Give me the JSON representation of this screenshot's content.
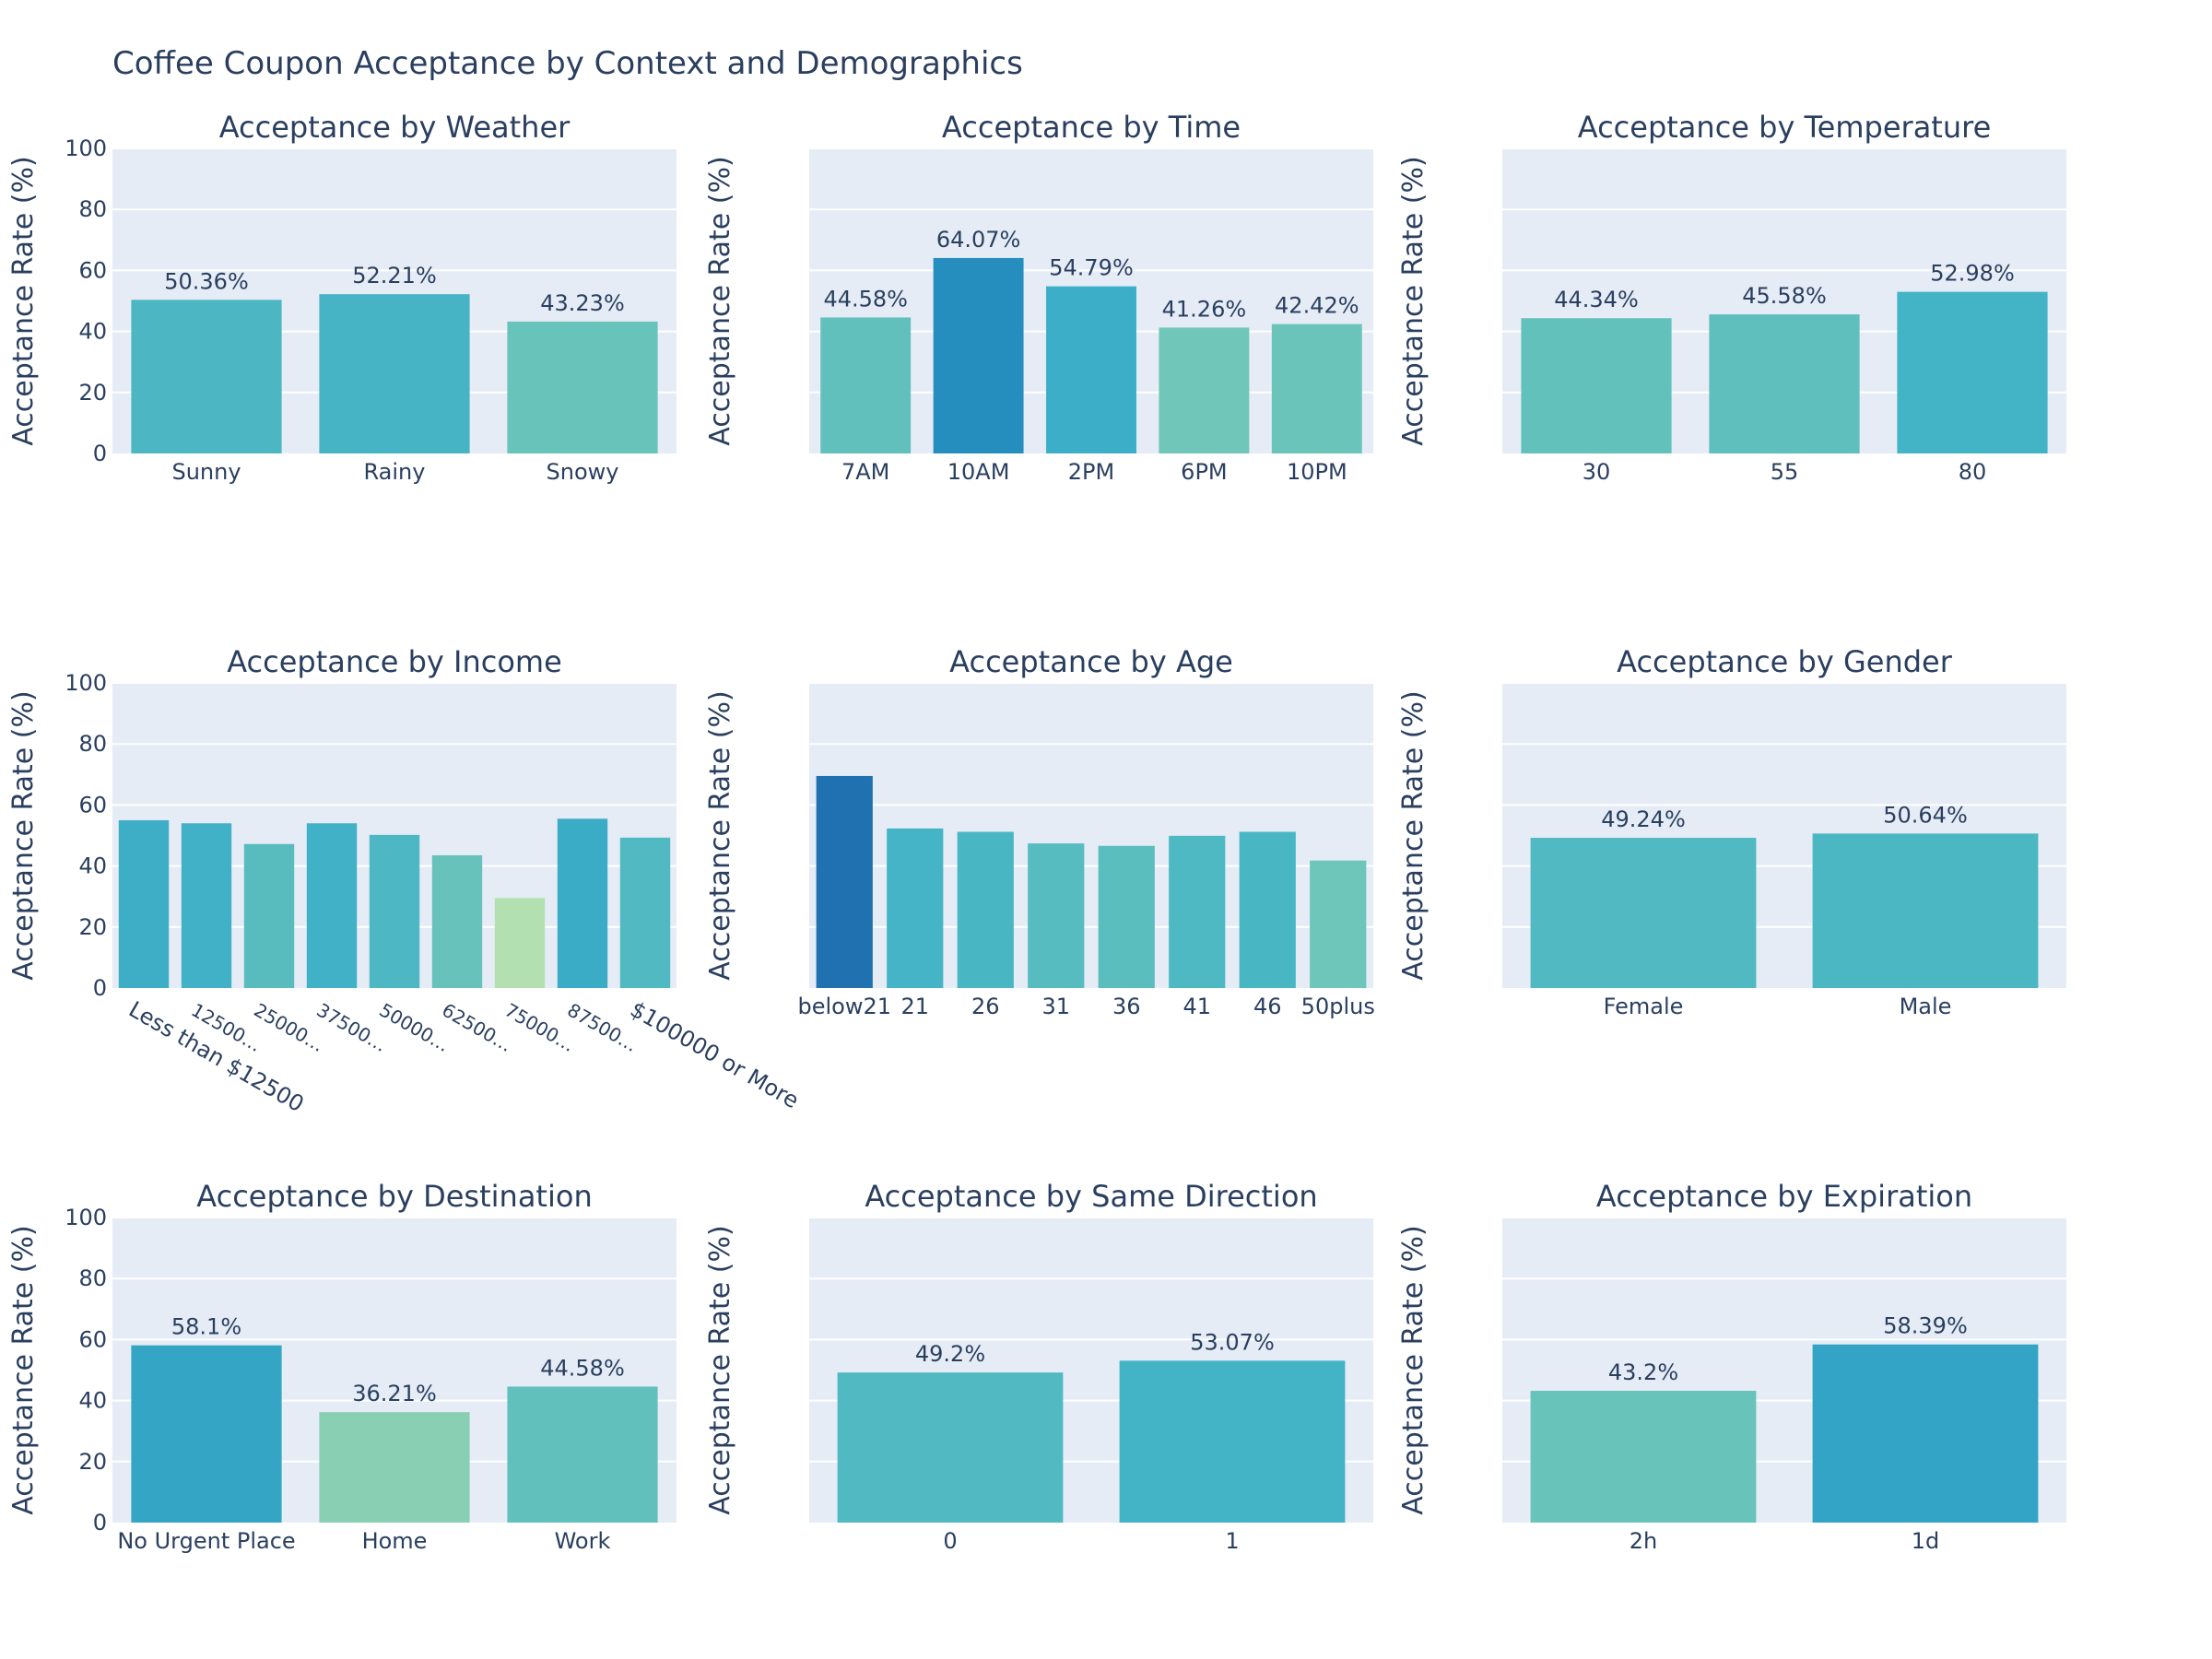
{
  "title": "Coffee Coupon Acceptance by Context and Demographics",
  "colors": {
    "plot_bg": "#e5ecf6",
    "grid": "#ffffff",
    "text": "#2a3f5f",
    "colorscale": [
      "#b3e0b0",
      "#80ccb5",
      "#5ebfbd",
      "#41b2c7",
      "#2a9bc4",
      "#1f71b0"
    ]
  },
  "y_axis_label": "Acceptance Rate (%)",
  "y_ticks": [
    "0",
    "20",
    "40",
    "60",
    "80",
    "100"
  ],
  "chart_data": [
    {
      "type": "bar",
      "title": "Acceptance by Weather",
      "ylabel": "Acceptance Rate (%)",
      "ylim": [
        0,
        100
      ],
      "show_yticks": true,
      "show_labels": true,
      "categories": [
        "Sunny",
        "Rainy",
        "Snowy"
      ],
      "values": [
        50.36,
        52.21,
        43.23
      ],
      "text": [
        "50.36%",
        "52.21%",
        "43.23%"
      ]
    },
    {
      "type": "bar",
      "title": "Acceptance by Time",
      "ylabel": "Acceptance Rate (%)",
      "ylim": [
        0,
        100
      ],
      "show_yticks": false,
      "show_labels": true,
      "categories": [
        "7AM",
        "10AM",
        "2PM",
        "6PM",
        "10PM"
      ],
      "values": [
        44.58,
        64.07,
        54.79,
        41.26,
        42.42
      ],
      "text": [
        "44.58%",
        "64.07%",
        "54.79%",
        "41.26%",
        "42.42%"
      ]
    },
    {
      "type": "bar",
      "title": "Acceptance by Temperature",
      "ylabel": "Acceptance Rate (%)",
      "ylim": [
        0,
        100
      ],
      "show_yticks": false,
      "show_labels": true,
      "categories": [
        "30",
        "55",
        "80"
      ],
      "values": [
        44.34,
        45.58,
        52.98
      ],
      "text": [
        "44.34%",
        "45.58%",
        "52.98%"
      ]
    },
    {
      "type": "bar",
      "title": "Acceptance by Income",
      "ylabel": "Acceptance Rate (%)",
      "ylim": [
        0,
        100
      ],
      "show_yticks": true,
      "show_labels": false,
      "rotated_ticks": true,
      "categories": [
        "Less than $12500",
        "12500…",
        "25000…",
        "37500…",
        "50000…",
        "62500…",
        "75000…",
        "87500…",
        "$100000 or More"
      ],
      "values": [
        55.0,
        54.0,
        47.2,
        54.0,
        50.2,
        43.5,
        29.5,
        55.5,
        49.3
      ]
    },
    {
      "type": "bar",
      "title": "Acceptance by Age",
      "ylabel": "Acceptance Rate (%)",
      "ylim": [
        0,
        100
      ],
      "show_yticks": false,
      "show_labels": false,
      "categories": [
        "below21",
        "21",
        "26",
        "31",
        "36",
        "41",
        "46",
        "50plus"
      ],
      "values": [
        69.5,
        52.3,
        51.2,
        47.4,
        46.6,
        49.9,
        51.2,
        41.8
      ]
    },
    {
      "type": "bar",
      "title": "Acceptance by Gender",
      "ylabel": "Acceptance Rate (%)",
      "ylim": [
        0,
        100
      ],
      "show_yticks": false,
      "show_labels": true,
      "categories": [
        "Female",
        "Male"
      ],
      "values": [
        49.24,
        50.64
      ],
      "text": [
        "49.24%",
        "50.64%"
      ]
    },
    {
      "type": "bar",
      "title": "Acceptance by Destination",
      "ylabel": "Acceptance Rate (%)",
      "ylim": [
        0,
        100
      ],
      "show_yticks": true,
      "show_labels": true,
      "categories": [
        "No Urgent Place",
        "Home",
        "Work"
      ],
      "values": [
        58.1,
        36.21,
        44.58
      ],
      "text": [
        "58.1%",
        "36.21%",
        "44.58%"
      ]
    },
    {
      "type": "bar",
      "title": "Acceptance by Same Direction",
      "ylabel": "Acceptance Rate (%)",
      "ylim": [
        0,
        100
      ],
      "show_yticks": false,
      "show_labels": true,
      "categories": [
        "0",
        "1"
      ],
      "values": [
        49.2,
        53.07
      ],
      "text": [
        "49.2%",
        "53.07%"
      ]
    },
    {
      "type": "bar",
      "title": "Acceptance by Expiration",
      "ylabel": "Acceptance Rate (%)",
      "ylim": [
        0,
        100
      ],
      "show_yticks": false,
      "show_labels": true,
      "categories": [
        "2h",
        "1d"
      ],
      "values": [
        43.2,
        58.39
      ],
      "text": [
        "43.2%",
        "58.39%"
      ]
    }
  ]
}
